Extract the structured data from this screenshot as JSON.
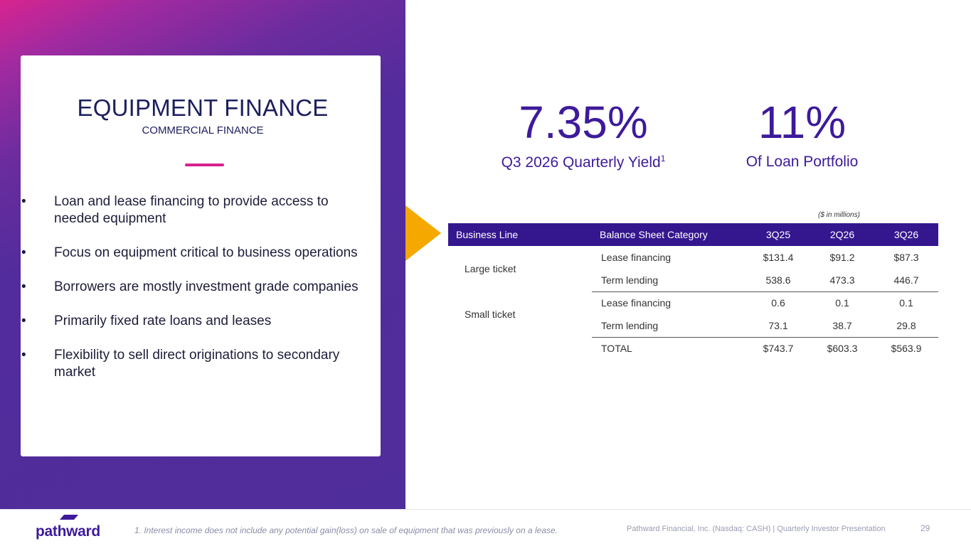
{
  "card": {
    "title": "EQUIPMENT FINANCE",
    "subtitle": "COMMERCIAL FINANCE",
    "bullet_char": "•",
    "bullets": [
      "Loan and lease financing to provide access to needed equipment",
      "Focus on equipment critical to business operations",
      "Borrowers are mostly investment grade companies",
      "Primarily fixed rate loans and leases",
      "Flexibility to sell direct originations to secondary market"
    ]
  },
  "stats": [
    {
      "value": "7.35%",
      "label": "Q3 2026 Quarterly Yield",
      "footnote_ref": "1"
    },
    {
      "value": "11%",
      "label": "Of Loan Portfolio"
    }
  ],
  "table": {
    "units_note": "($ in millions)",
    "headers": [
      "Business Line",
      "Balance Sheet Category",
      "3Q25",
      "2Q26",
      "3Q26"
    ],
    "groups": [
      {
        "business_line": "Large ticket",
        "rows": [
          {
            "category": "Lease financing",
            "3Q25": "$131.4",
            "2Q26": "$91.2",
            "3Q26": "$87.3"
          },
          {
            "category": "Term lending",
            "3Q25": "538.6",
            "2Q26": "473.3",
            "3Q26": "446.7"
          }
        ]
      },
      {
        "business_line": "Small ticket",
        "rows": [
          {
            "category": "Lease financing",
            "3Q25": "0.6",
            "2Q26": "0.1",
            "3Q26": "0.1"
          },
          {
            "category": "Term lending",
            "3Q25": "73.1",
            "2Q26": "38.7",
            "3Q26": "29.8"
          }
        ]
      }
    ],
    "total": {
      "label": "TOTAL",
      "3Q25": "$743.7",
      "2Q26": "$603.3",
      "3Q26": "$563.9"
    }
  },
  "footer": {
    "logo_text": "pathward",
    "footnote": "1. Interest income does not include any potential gain(loss) on sale of equipment that was previously on a lease.",
    "credit": "Pathward Financial, Inc. (Nasdaq: CASH) | Quarterly Investor Presentation",
    "page_number": "29"
  },
  "colors": {
    "brand_purple": "#3d1a9b",
    "table_header": "#34178f",
    "accent_magenta": "#d6228e",
    "arrow_gold": "#f5a800"
  }
}
